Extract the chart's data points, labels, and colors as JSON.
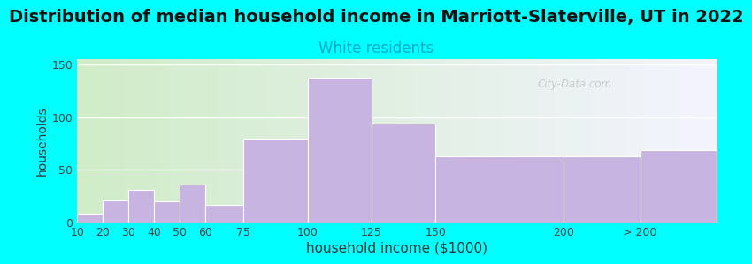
{
  "title": "Distribution of median household income in Marriott-Slaterville, UT in 2022",
  "subtitle": "White residents",
  "xlabel": "household income ($1000)",
  "ylabel": "households",
  "title_fontsize": 14,
  "subtitle_fontsize": 12,
  "subtitle_color": "#00aacc",
  "bar_color": "#c8b4e0",
  "bar_edge_color": "#ffffff",
  "background_outer": "#00ffff",
  "background_plot_left": "#d8f0d0",
  "background_plot_right": "#f0f0ff",
  "bin_edges": [
    10,
    20,
    30,
    40,
    50,
    60,
    75,
    100,
    125,
    150,
    200,
    230,
    260
  ],
  "values": [
    8,
    21,
    31,
    20,
    36,
    17,
    80,
    137,
    94,
    63,
    63,
    69
  ],
  "xlim": [
    10,
    260
  ],
  "ylim": [
    0,
    155
  ],
  "yticks": [
    0,
    50,
    100,
    150
  ],
  "xtick_labels": [
    "10",
    "20",
    "30",
    "40",
    "50",
    "60",
    "75",
    "100",
    "125",
    "150",
    "200",
    "> 200"
  ],
  "xtick_positions": [
    10,
    20,
    30,
    40,
    50,
    60,
    75,
    100,
    125,
    150,
    200,
    230
  ],
  "watermark": "City-Data.com"
}
